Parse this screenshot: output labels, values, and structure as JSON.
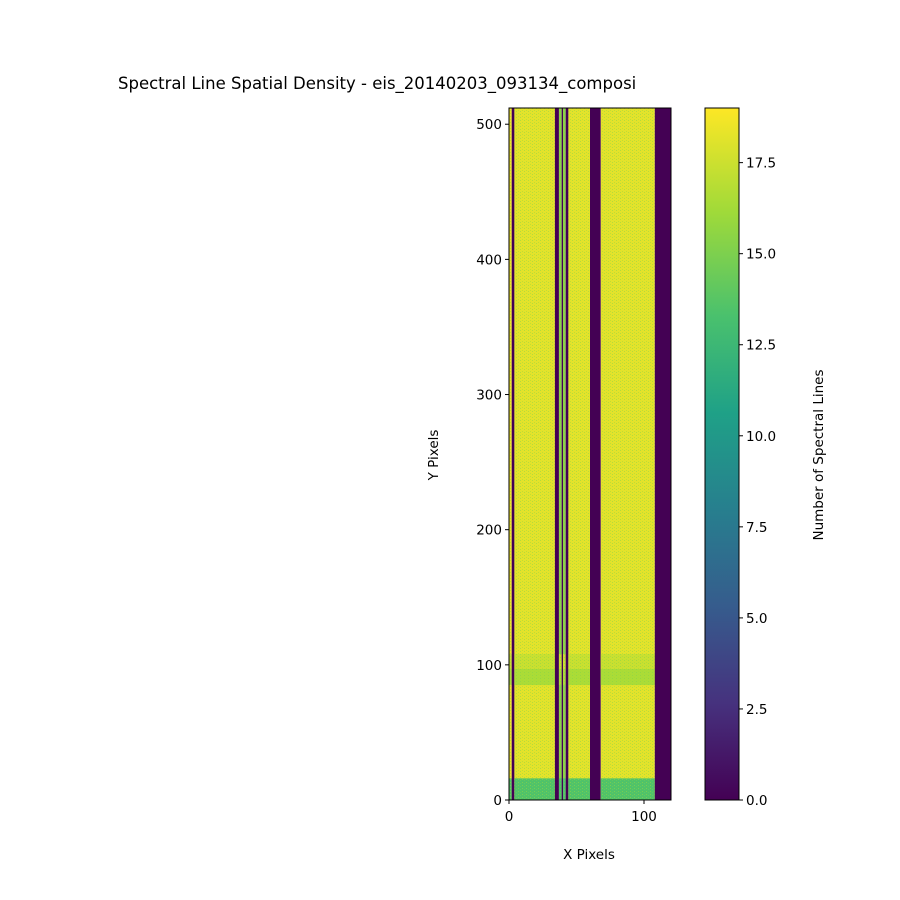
{
  "chart_data": {
    "type": "heatmap",
    "title": "Spectral Line Spatial Density - eis_20140203_093134_composi",
    "xlabel": "X Pixels",
    "ylabel": "Y Pixels",
    "x_ticks": [
      0,
      100
    ],
    "y_ticks": [
      0,
      100,
      200,
      300,
      400,
      500
    ],
    "xlim": [
      0,
      120
    ],
    "ylim": [
      0,
      512
    ],
    "colorbar": {
      "label": "Number of Spectral Lines",
      "ticks": [
        "0.0",
        "2.5",
        "5.0",
        "7.5",
        "10.0",
        "12.5",
        "15.0",
        "17.5"
      ],
      "range": [
        0,
        19
      ],
      "colormap": "viridis"
    },
    "columns": [
      {
        "x_start": 0,
        "x_end": 2,
        "value": 18.6
      },
      {
        "x_start": 2,
        "x_end": 4,
        "value": 0
      },
      {
        "x_start": 4,
        "x_end": 34,
        "value": 18.2
      },
      {
        "x_start": 34,
        "x_end": 37,
        "value": 0
      },
      {
        "x_start": 37,
        "x_end": 39,
        "value": 15.5
      },
      {
        "x_start": 39,
        "x_end": 40,
        "value": 0
      },
      {
        "x_start": 40,
        "x_end": 42,
        "value": 15.5
      },
      {
        "x_start": 42,
        "x_end": 44,
        "value": 0
      },
      {
        "x_start": 44,
        "x_end": 60,
        "value": 18.2
      },
      {
        "x_start": 60,
        "x_end": 68,
        "value": 0
      },
      {
        "x_start": 68,
        "x_end": 108,
        "value": 18.2
      },
      {
        "x_start": 108,
        "x_end": 120,
        "value": 0
      }
    ],
    "row_bands": [
      {
        "y_start": 0,
        "y_end": 16,
        "value": 13.5
      },
      {
        "y_start": 85,
        "y_end": 97,
        "value": 16.5
      },
      {
        "y_start": 97,
        "y_end": 108,
        "value": 17.4
      }
    ]
  }
}
